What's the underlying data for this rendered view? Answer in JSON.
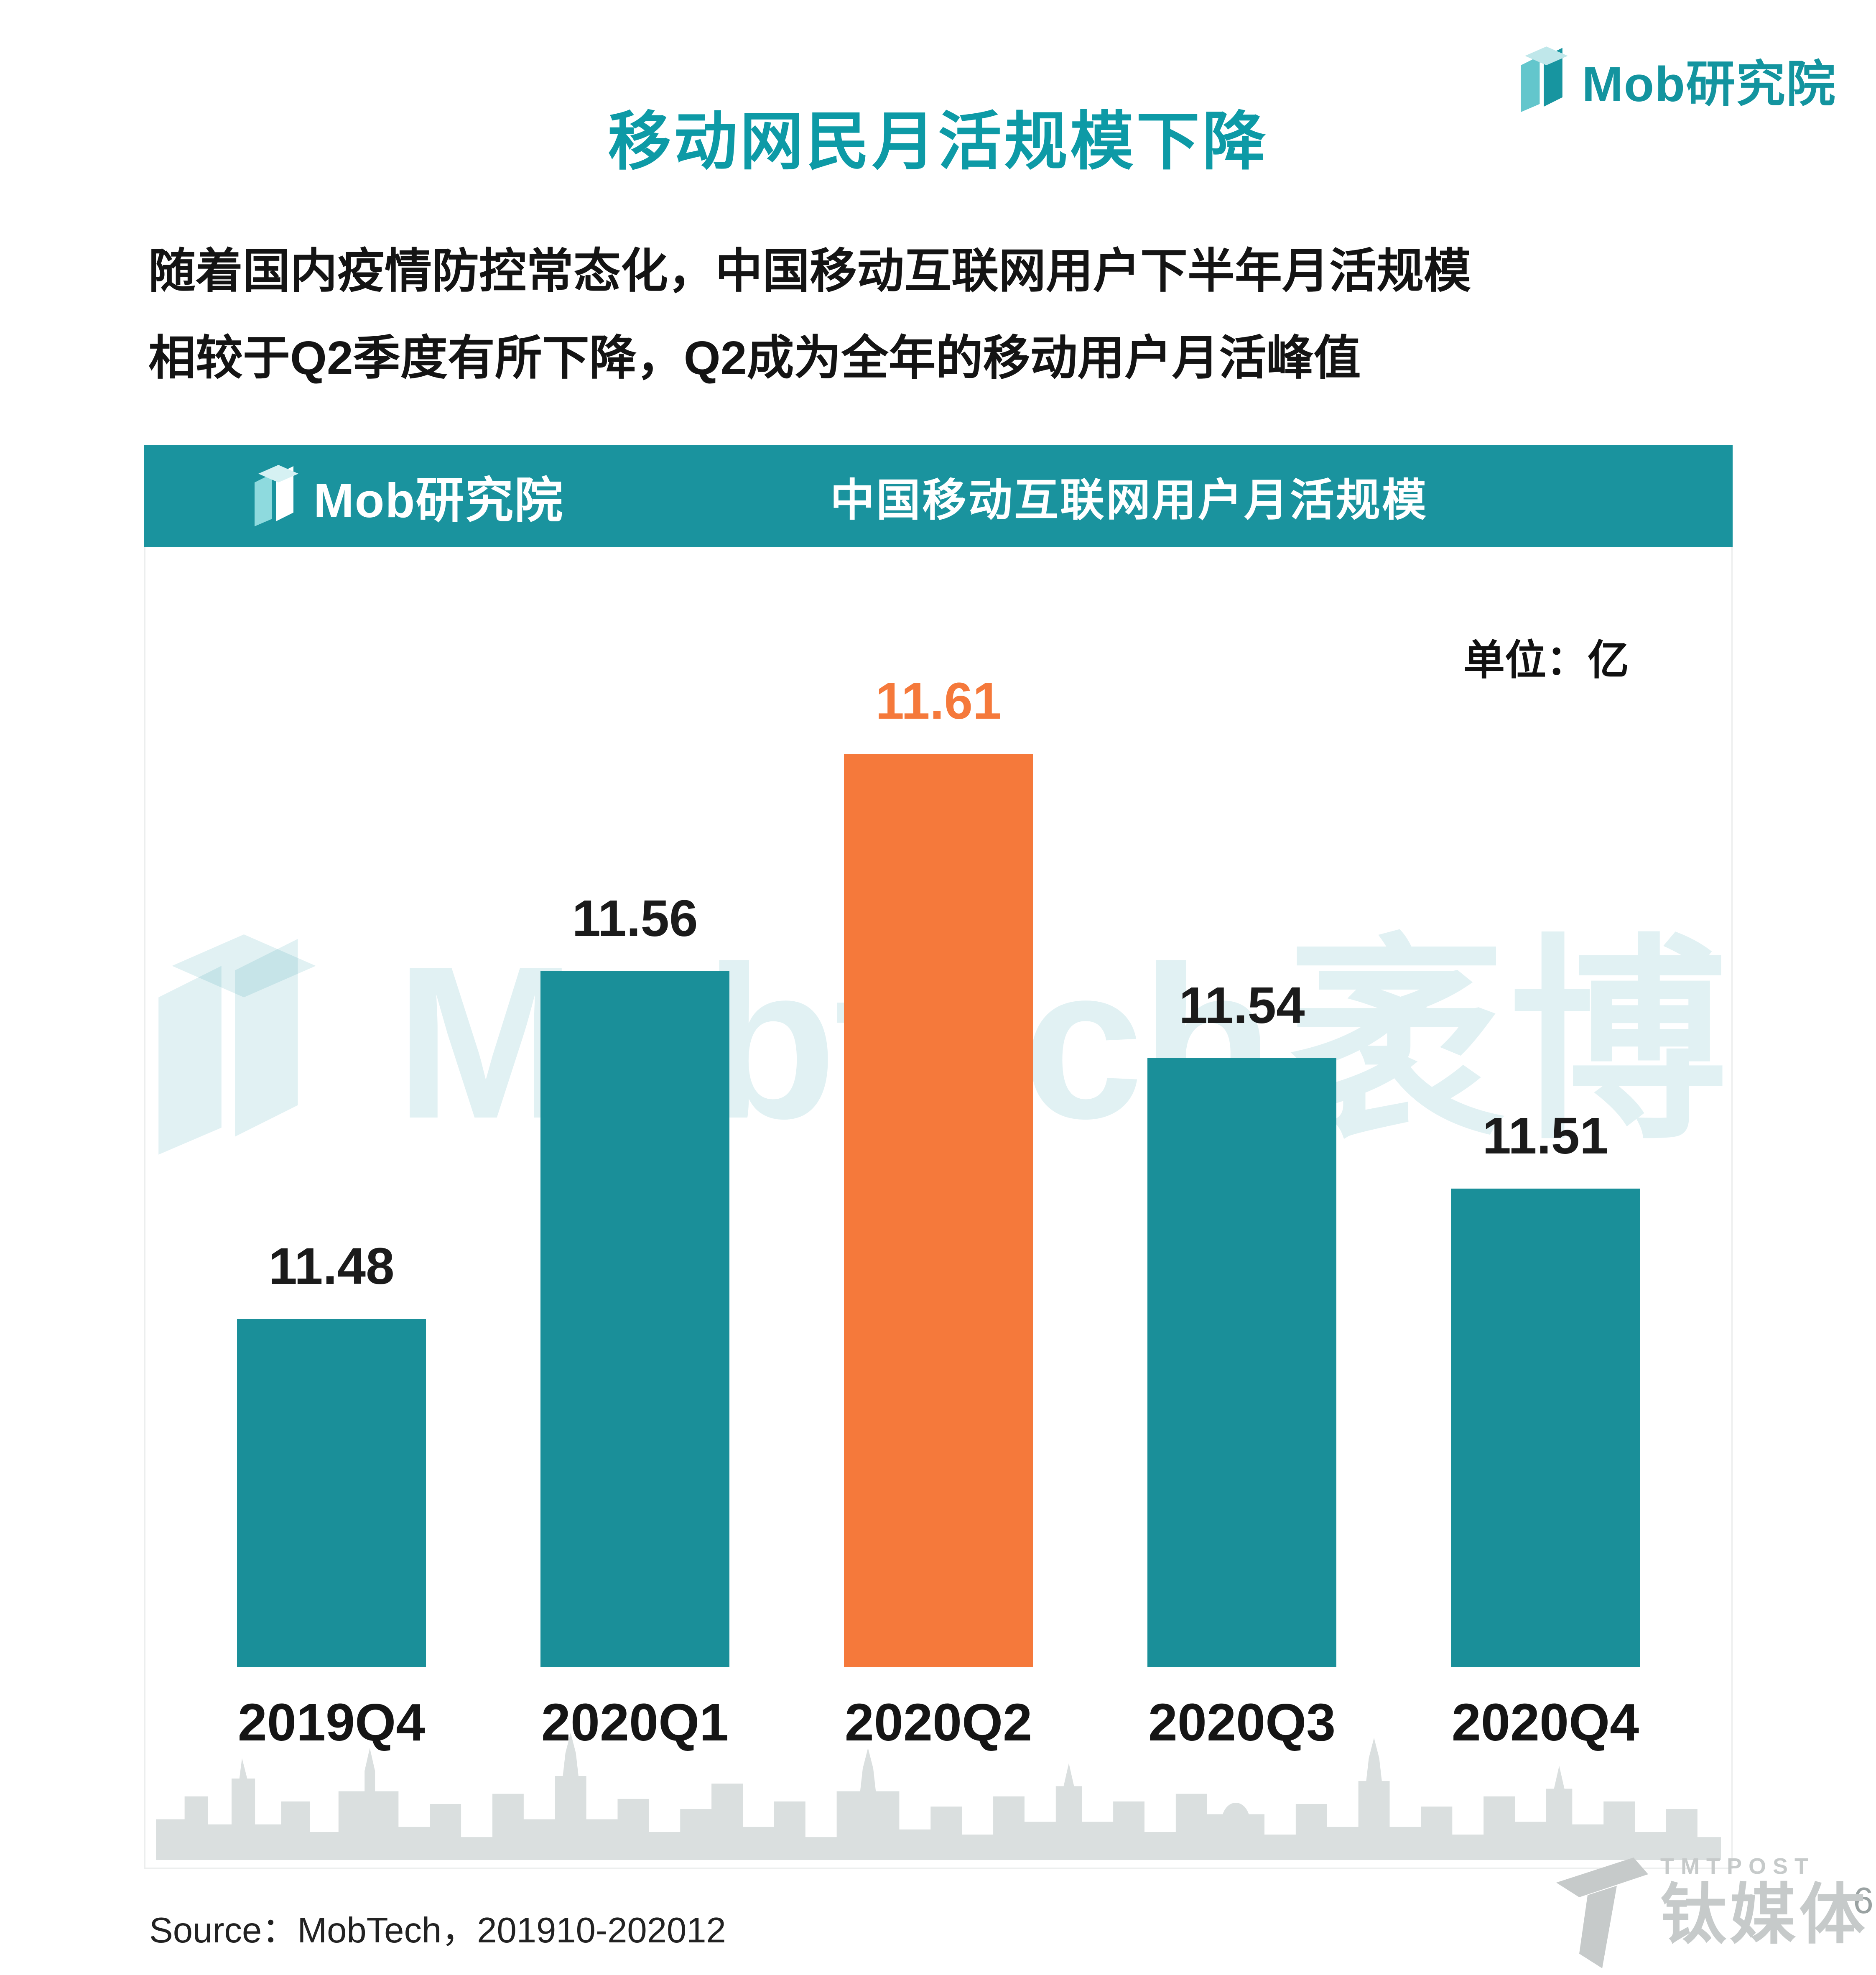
{
  "page": {
    "title": "移动网民月活规模下降",
    "subtitle1": "随着国内疫情防控常态化，中国移动互联网用户下半年月活规模",
    "subtitle2": "相较于Q2季度有所下降，Q2成为全年的移动用户月活峰值",
    "source": "Source：MobTech，201910-202012",
    "page_number": "6"
  },
  "brand": {
    "mob": "Mob",
    "suffix": "研究院"
  },
  "chart_panel": {
    "header_title": "中国移动互联网用户月活规模",
    "unit_label": "单位：亿"
  },
  "watermark": {
    "en": "Mobtech",
    "cn": "袤博"
  },
  "tmt": {
    "en": "TMTPOST",
    "cn": "钛媒体"
  },
  "colors": {
    "header_teal": "#1A939E",
    "title_teal": "#0D9AA6",
    "bar_teal": "#1A8F99",
    "highlight_orange": "#F5793B",
    "watermark_teal": "rgba(27,150,160,0.13)",
    "skyline_gray": "#D6DBDB"
  },
  "chart_data": {
    "type": "bar",
    "title": "中国移动互联网用户月活规模",
    "unit": "亿",
    "categories": [
      "2019Q4",
      "2020Q1",
      "2020Q2",
      "2020Q3",
      "2020Q4"
    ],
    "values": [
      11.48,
      11.56,
      11.61,
      11.54,
      11.51
    ],
    "highlight_index": 2,
    "highlight_category": "2020Q2",
    "ylim": [
      11.4,
      11.65
    ],
    "grid": false,
    "legend": false,
    "colors": {
      "bar": "#1A8F99",
      "highlight": "#F5793B"
    },
    "value_label_color": "#1B1B1B",
    "highlight_value_label_color": "#F5793B"
  }
}
